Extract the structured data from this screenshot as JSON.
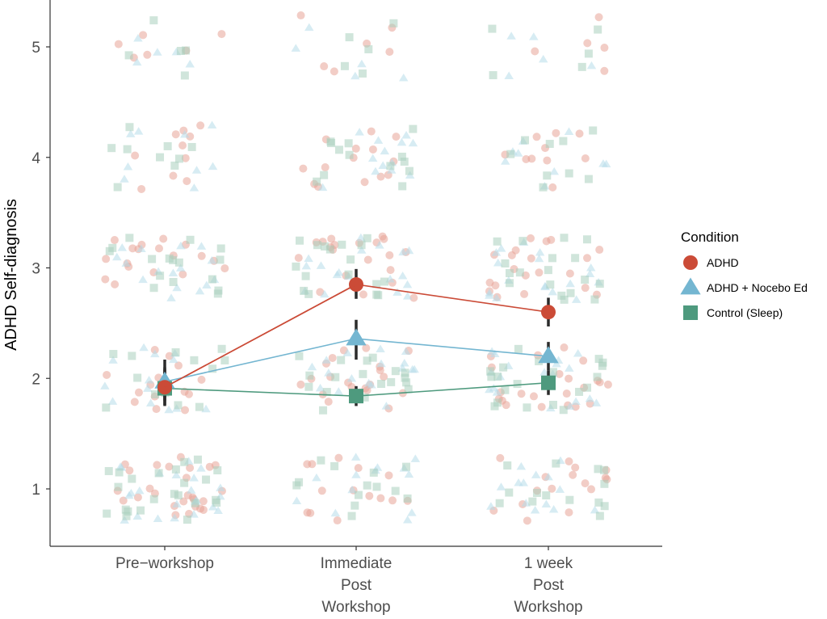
{
  "chart_data": {
    "type": "line",
    "title": "",
    "xlabel": "",
    "ylabel": "ADHD Self-diagnosis",
    "ylim": [
      0.5,
      5.45
    ],
    "yticks": [
      1,
      2,
      3,
      4,
      5
    ],
    "grid": false,
    "categories": [
      [
        "Pre−workshop"
      ],
      [
        "Immediate",
        "Post",
        "Workshop"
      ],
      [
        "1 week",
        "Post",
        "Workshop"
      ]
    ],
    "legend": {
      "title": "Condition",
      "placement": "right",
      "entries": [
        {
          "name": "ADHD",
          "shape": "circle",
          "color": "#CB4B37"
        },
        {
          "name": "ADHD + Nocebo Ed",
          "shape": "triangle",
          "color": "#74B6D1"
        },
        {
          "name": "Control (Sleep)",
          "shape": "square",
          "color": "#4E9A7E"
        }
      ]
    },
    "series": [
      {
        "name": "ADHD",
        "shape": "circle",
        "color": "#CB4B37",
        "values": [
          1.92,
          2.85,
          2.6
        ],
        "ci_low": [
          1.76,
          2.72,
          2.47
        ],
        "ci_high": [
          2.1,
          2.99,
          2.73
        ]
      },
      {
        "name": "ADHD + Nocebo Ed",
        "shape": "triangle",
        "color": "#74B6D1",
        "values": [
          1.97,
          2.36,
          2.2
        ],
        "ci_low": [
          1.8,
          2.17,
          2.07
        ],
        "ci_high": [
          2.17,
          2.53,
          2.33
        ]
      },
      {
        "name": "Control (Sleep)",
        "shape": "square",
        "color": "#4E9A7E",
        "values": [
          1.91,
          1.84,
          1.96
        ],
        "ci_low": [
          1.75,
          1.75,
          1.85
        ],
        "ci_high": [
          2.08,
          1.93,
          2.07
        ]
      }
    ],
    "raw_points_note": "Jittered individual responses at integer levels 1-5 for each condition and timepoint, drawn semi-transparent"
  }
}
